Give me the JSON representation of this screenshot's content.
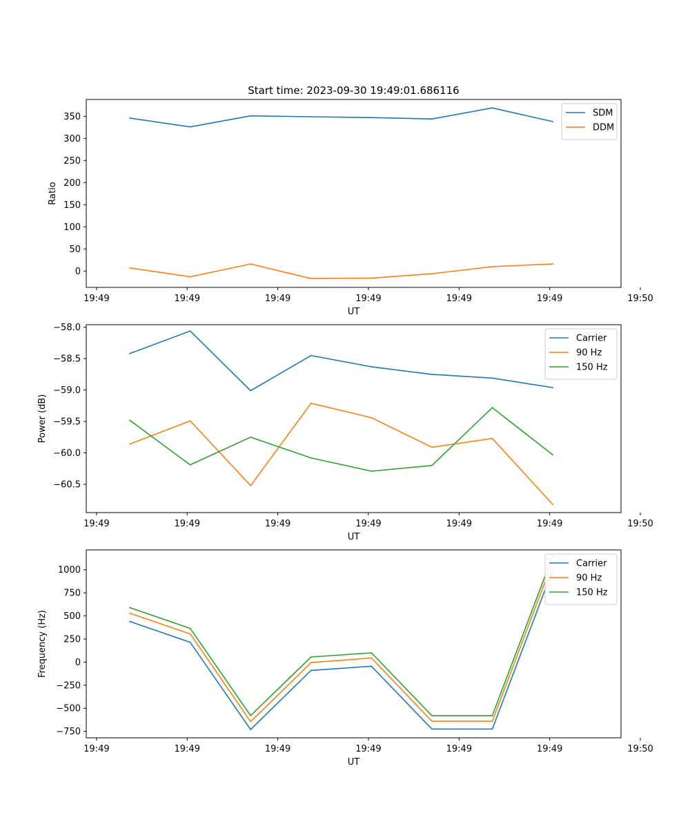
{
  "figure_title": "Start time: 2023-09-30 19:49:01.686116",
  "chart_data": [
    {
      "type": "line",
      "title": "Start time: 2023-09-30 19:49:01.686116",
      "xlabel": "UT",
      "ylabel": "Ratio",
      "x": [
        1,
        2,
        3,
        4,
        5,
        6,
        7,
        8
      ],
      "xlim": [
        0.28,
        9.13
      ],
      "x_ticks": [
        0.45,
        1.95,
        3.45,
        4.95,
        6.45,
        7.95,
        9.45
      ],
      "x_tick_labels": [
        "19:49",
        "19:49",
        "19:49",
        "19:49",
        "19:49",
        "19:49",
        "19:50"
      ],
      "ylim": [
        -37,
        388
      ],
      "y_ticks": [
        0,
        50,
        100,
        150,
        200,
        250,
        300,
        350
      ],
      "y_tick_labels": [
        "0",
        "50",
        "100",
        "150",
        "200",
        "250",
        "300",
        "350"
      ],
      "legend_position": "top-right",
      "series": [
        {
          "name": "SDM",
          "color": "#1f77b4",
          "values": [
            346,
            326,
            351,
            349,
            347,
            344,
            369,
            338
          ]
        },
        {
          "name": "DDM",
          "color": "#ff7f0e",
          "values": [
            7,
            -13,
            16,
            -17,
            -16,
            -6,
            10,
            16
          ]
        }
      ]
    },
    {
      "type": "line",
      "title": "",
      "xlabel": "UT",
      "ylabel": "Power (dB)",
      "x": [
        1,
        2,
        3,
        4,
        5,
        6,
        7,
        8
      ],
      "xlim": [
        0.28,
        9.13
      ],
      "x_ticks": [
        0.45,
        1.95,
        3.45,
        4.95,
        6.45,
        7.95,
        9.45
      ],
      "x_tick_labels": [
        "19:49",
        "19:49",
        "19:49",
        "19:49",
        "19:49",
        "19:49",
        "19:50"
      ],
      "ylim": [
        -60.95,
        -57.96
      ],
      "y_ticks": [
        -60.5,
        -60.0,
        -59.5,
        -59.0,
        -58.5,
        -58.0
      ],
      "y_tick_labels": [
        "−60.5",
        "−60.0",
        "−59.5",
        "−59.0",
        "−58.5",
        "−58.0"
      ],
      "legend_position": "top-right",
      "series": [
        {
          "name": "Carrier",
          "color": "#1f77b4",
          "values": [
            -58.42,
            -58.06,
            -59.01,
            -58.45,
            -58.63,
            -58.75,
            -58.81,
            -58.96
          ]
        },
        {
          "name": "90 Hz",
          "color": "#ff7f0e",
          "values": [
            -59.86,
            -59.49,
            -60.52,
            -59.21,
            -59.44,
            -59.91,
            -59.77,
            -60.82
          ]
        },
        {
          "name": "150 Hz",
          "color": "#2ca02c",
          "values": [
            -59.48,
            -60.19,
            -59.75,
            -60.08,
            -60.29,
            -60.2,
            -59.28,
            -60.03
          ]
        }
      ]
    },
    {
      "type": "line",
      "title": "",
      "xlabel": "UT",
      "ylabel": "Frequency (Hz)",
      "x": [
        1,
        2,
        3,
        4,
        5,
        6,
        7,
        8
      ],
      "xlim": [
        0.28,
        9.13
      ],
      "x_ticks": [
        0.45,
        1.95,
        3.45,
        4.95,
        6.45,
        7.95,
        9.45
      ],
      "x_tick_labels": [
        "19:49",
        "19:49",
        "19:49",
        "19:49",
        "19:49",
        "19:49",
        "19:50"
      ],
      "ylim": [
        -820,
        1215
      ],
      "y_ticks": [
        -750,
        -500,
        -250,
        0,
        250,
        500,
        750,
        1000
      ],
      "y_tick_labels": [
        "−750",
        "−500",
        "−250",
        "0",
        "250",
        "500",
        "750",
        "1000"
      ],
      "legend_position": "top-right",
      "series": [
        {
          "name": "Carrier",
          "color": "#1f77b4",
          "values": [
            440,
            215,
            -730,
            -90,
            -45,
            -725,
            -725,
            1000
          ]
        },
        {
          "name": "90 Hz",
          "color": "#ff7f0e",
          "values": [
            530,
            305,
            -645,
            -5,
            45,
            -640,
            -640,
            1090
          ]
        },
        {
          "name": "150 Hz",
          "color": "#2ca02c",
          "values": [
            590,
            365,
            -580,
            55,
            100,
            -580,
            -580,
            1150
          ]
        }
      ]
    }
  ]
}
